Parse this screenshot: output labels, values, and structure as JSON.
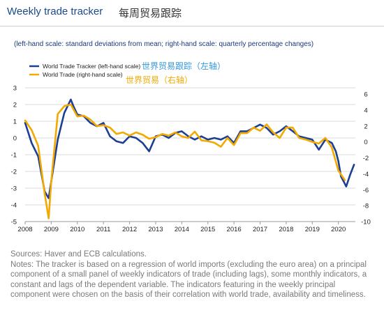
{
  "header": {
    "title": "Weekly trade tracker",
    "title_cn": "每周贸易跟踪"
  },
  "chart_data": {
    "type": "line",
    "subtitle": "(left-hand scale: standard deviations from mean; right-hand scale: quarterly percentage changes)",
    "x_ticks": [
      "2008",
      "2009",
      "2010",
      "2011",
      "2012",
      "2013",
      "2014",
      "2015",
      "2016",
      "2017",
      "2018",
      "2019",
      "2020"
    ],
    "xlim": [
      2008.0,
      2020.65
    ],
    "left_axis": {
      "ticks": [
        3,
        2,
        1,
        0,
        -1,
        -2,
        -3,
        -4,
        -5
      ],
      "ylim": [
        -5,
        3
      ]
    },
    "right_axis": {
      "ticks": [
        6,
        4,
        2,
        0,
        -2,
        -4,
        -6,
        -8,
        -10
      ],
      "ylim": [
        -10,
        6.8
      ]
    },
    "grid": "horizontal",
    "legend": {
      "position": "top-left",
      "annotation_color": "#3399dd",
      "annotation_color_2": "#f2a900"
    },
    "series": [
      {
        "name": "World Trade Tracker (left-hand scale)",
        "annotation": "世界贸易跟踪（左轴）",
        "axis": "left",
        "color": "#1c3f94",
        "x": [
          2008.0,
          2008.25,
          2008.5,
          2008.75,
          2008.9,
          2009.0,
          2009.25,
          2009.5,
          2009.75,
          2009.85,
          2010.0,
          2010.25,
          2010.5,
          2010.75,
          2011.0,
          2011.25,
          2011.5,
          2011.75,
          2012.0,
          2012.25,
          2012.5,
          2012.75,
          2013.0,
          2013.25,
          2013.5,
          2013.75,
          2014.0,
          2014.25,
          2014.5,
          2014.75,
          2015.0,
          2015.25,
          2015.5,
          2015.75,
          2016.0,
          2016.25,
          2016.5,
          2016.75,
          2017.0,
          2017.25,
          2017.5,
          2017.75,
          2018.0,
          2018.25,
          2018.5,
          2018.75,
          2019.0,
          2019.25,
          2019.5,
          2019.75,
          2019.9,
          2020.0,
          2020.1,
          2020.2,
          2020.3,
          2020.45,
          2020.6
        ],
        "y": [
          0.9,
          -0.3,
          -1.1,
          -3.2,
          -3.6,
          -2.6,
          -0.1,
          1.5,
          2.3,
          1.9,
          1.4,
          1.3,
          0.9,
          0.7,
          0.9,
          0.1,
          -0.2,
          -0.3,
          0.1,
          0.0,
          -0.3,
          -0.8,
          0.1,
          0.2,
          0.0,
          0.3,
          0.4,
          0.1,
          -0.1,
          0.1,
          -0.1,
          0.0,
          -0.1,
          0.1,
          -0.3,
          0.4,
          0.4,
          0.6,
          0.8,
          0.6,
          0.2,
          0.4,
          0.7,
          0.4,
          0.1,
          0.0,
          -0.1,
          -0.7,
          -0.1,
          -0.3,
          -0.8,
          -1.4,
          -2.3,
          -2.6,
          -2.9,
          -2.2,
          -1.6
        ]
      },
      {
        "name": "World Trade (right-hand scale)",
        "annotation": "世界贸易（右轴）",
        "axis": "right",
        "color": "#f2a900",
        "x": [
          2008.0,
          2008.25,
          2008.5,
          2008.75,
          2008.9,
          2009.0,
          2009.25,
          2009.5,
          2009.75,
          2010.0,
          2010.25,
          2010.5,
          2010.75,
          2011.0,
          2011.25,
          2011.5,
          2011.75,
          2012.0,
          2012.25,
          2012.5,
          2012.75,
          2013.0,
          2013.25,
          2013.5,
          2013.75,
          2014.0,
          2014.25,
          2014.5,
          2014.75,
          2015.0,
          2015.25,
          2015.5,
          2015.75,
          2016.0,
          2016.25,
          2016.5,
          2016.75,
          2017.0,
          2017.25,
          2017.5,
          2017.75,
          2018.0,
          2018.25,
          2018.5,
          2018.75,
          2019.0,
          2019.25,
          2019.5,
          2019.75,
          2020.0,
          2020.25
        ],
        "y": [
          2.7,
          1.5,
          -0.5,
          -6.5,
          -9.6,
          -5.0,
          3.5,
          4.5,
          4.7,
          3.2,
          3.3,
          2.8,
          2.0,
          2.1,
          1.8,
          1.0,
          1.2,
          0.8,
          1.2,
          0.9,
          0.4,
          0.6,
          1.0,
          0.8,
          1.2,
          0.7,
          0.5,
          1.3,
          0.2,
          0.1,
          -0.1,
          -0.6,
          0.5,
          -0.4,
          1.1,
          1.1,
          1.8,
          1.4,
          2.2,
          1.2,
          0.5,
          1.8,
          1.8,
          0.5,
          0.3,
          0.0,
          -0.2,
          0.5,
          -0.7,
          -3.6,
          -4.8
        ]
      }
    ]
  },
  "footer": {
    "sources": "Sources: Haver and ECB calculations.",
    "notes": "Notes: The tracker is based on a regression of world imports (excluding the euro area) on a principal component of a small panel of weekly indicators of trade (including lags), some monthly indicators, a constant and lags of the dependent variable. The indicators featuring in the weekly principal component were chosen on the basis of their correlation with world trade, availability and timeliness."
  }
}
